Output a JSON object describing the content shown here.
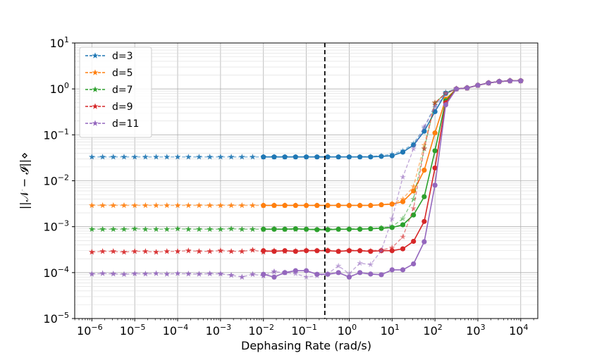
{
  "chart_data": {
    "type": "line",
    "xlabel": "Dephasing Rate (rad/s)",
    "ylabel": "||𝒩 − 𝓘||⋄",
    "x_scale": "log",
    "y_scale": "log",
    "xlim": [
      3.98e-07,
      25000
    ],
    "ylim": [
      1e-05,
      10
    ],
    "x_ticks": [
      {
        "base": "10",
        "exp": "−6"
      },
      {
        "base": "10",
        "exp": "−5"
      },
      {
        "base": "10",
        "exp": "−4"
      },
      {
        "base": "10",
        "exp": "−3"
      },
      {
        "base": "10",
        "exp": "−2"
      },
      {
        "base": "10",
        "exp": "−1"
      },
      {
        "base": "10",
        "exp": "0"
      },
      {
        "base": "10",
        "exp": "1"
      },
      {
        "base": "10",
        "exp": "2"
      },
      {
        "base": "10",
        "exp": "3"
      },
      {
        "base": "10",
        "exp": "4"
      }
    ],
    "y_ticks": [
      {
        "base": "10",
        "exp": "−5"
      },
      {
        "base": "10",
        "exp": "−4"
      },
      {
        "base": "10",
        "exp": "−3"
      },
      {
        "base": "10",
        "exp": "−2"
      },
      {
        "base": "10",
        "exp": "−1"
      },
      {
        "base": "10",
        "exp": "0"
      },
      {
        "base": "10",
        "exp": "1"
      }
    ],
    "grid": true,
    "legend_position": "top-left",
    "vline_x": 0.27,
    "series": [
      {
        "name": "d=3",
        "color": "#1f77b4",
        "star_x": [
          1e-06,
          1.78e-06,
          3.16e-06,
          5.62e-06,
          1e-05,
          1.78e-05,
          3.16e-05,
          5.62e-05,
          0.0001,
          0.000178,
          0.000316,
          0.000562,
          0.001,
          0.00178,
          0.00316,
          0.00562,
          0.01,
          0.0178,
          0.0316,
          0.0562,
          0.1,
          0.178,
          0.316,
          0.562,
          1,
          1.78,
          3.16,
          5.62,
          10,
          17.8,
          31.6,
          56.2,
          100,
          178,
          316,
          562,
          1000,
          1780,
          3160,
          5620,
          10000
        ],
        "star_y": [
          0.033,
          0.033,
          0.033,
          0.033,
          0.033,
          0.033,
          0.033,
          0.033,
          0.033,
          0.033,
          0.033,
          0.033,
          0.033,
          0.033,
          0.033,
          0.033,
          0.033,
          0.033,
          0.033,
          0.033,
          0.033,
          0.033,
          0.033,
          0.033,
          0.033,
          0.033,
          0.034,
          0.035,
          0.038,
          0.045,
          0.065,
          0.14,
          0.45,
          0.85,
          1.0,
          1.05,
          1.2,
          1.35,
          1.45,
          1.5,
          1.5
        ],
        "circle_x": [
          0.01,
          0.0178,
          0.0316,
          0.0562,
          0.1,
          0.178,
          0.316,
          0.562,
          1,
          1.78,
          3.16,
          5.62,
          10,
          17.8,
          31.6,
          56.2,
          100,
          178,
          316,
          562,
          1000,
          1780,
          3160,
          5620,
          10000
        ],
        "circle_y": [
          0.033,
          0.033,
          0.033,
          0.033,
          0.033,
          0.033,
          0.033,
          0.033,
          0.033,
          0.033,
          0.033,
          0.034,
          0.035,
          0.042,
          0.06,
          0.12,
          0.32,
          0.8,
          1.0,
          1.05,
          1.2,
          1.35,
          1.45,
          1.5,
          1.5
        ]
      },
      {
        "name": "d=5",
        "color": "#ff7f0e",
        "star_x": [
          1e-06,
          1.78e-06,
          3.16e-06,
          5.62e-06,
          1e-05,
          1.78e-05,
          3.16e-05,
          5.62e-05,
          0.0001,
          0.000178,
          0.000316,
          0.000562,
          0.001,
          0.00178,
          0.00316,
          0.00562,
          0.01,
          0.0178,
          0.0316,
          0.0562,
          0.1,
          0.178,
          0.316,
          0.562,
          1,
          1.78,
          3.16,
          5.62,
          10,
          17.8,
          31.6,
          56.2,
          100,
          178,
          316,
          562,
          1000,
          1780,
          3160,
          5620,
          10000
        ],
        "star_y": [
          0.0029,
          0.0029,
          0.0029,
          0.0029,
          0.0029,
          0.0029,
          0.0029,
          0.0029,
          0.0029,
          0.0029,
          0.0029,
          0.0029,
          0.0029,
          0.0029,
          0.0029,
          0.0029,
          0.0029,
          0.0029,
          0.0029,
          0.0029,
          0.0029,
          0.0029,
          0.0029,
          0.0029,
          0.0029,
          0.0029,
          0.0029,
          0.003,
          0.0032,
          0.004,
          0.0075,
          0.06,
          0.5,
          0.8,
          1.0,
          1.05,
          1.2,
          1.35,
          1.45,
          1.5,
          1.5
        ],
        "circle_x": [
          0.01,
          0.0178,
          0.0316,
          0.0562,
          0.1,
          0.178,
          0.316,
          0.562,
          1,
          1.78,
          3.16,
          5.62,
          10,
          17.8,
          31.6,
          56.2,
          100,
          178,
          316,
          562,
          1000,
          1780,
          3160,
          5620,
          10000
        ],
        "circle_y": [
          0.0029,
          0.0029,
          0.0029,
          0.0029,
          0.0029,
          0.0029,
          0.0029,
          0.0029,
          0.0029,
          0.0029,
          0.0029,
          0.003,
          0.0031,
          0.0035,
          0.006,
          0.017,
          0.11,
          0.6,
          1.0,
          1.05,
          1.2,
          1.35,
          1.45,
          1.5,
          1.5
        ]
      },
      {
        "name": "d=7",
        "color": "#2ca02c",
        "star_x": [
          1e-06,
          1.78e-06,
          3.16e-06,
          5.62e-06,
          1e-05,
          1.78e-05,
          3.16e-05,
          5.62e-05,
          0.0001,
          0.000178,
          0.000316,
          0.000562,
          0.001,
          0.00178,
          0.00316,
          0.00562,
          0.01,
          0.0178,
          0.0316,
          0.0562,
          0.1,
          0.178,
          0.316,
          0.562,
          1,
          1.78,
          3.16,
          5.62,
          10,
          17.8,
          31.6,
          56.2,
          100,
          178,
          316,
          562,
          1000,
          1780,
          3160,
          5620,
          10000
        ],
        "star_y": [
          0.00088,
          0.00088,
          0.00088,
          0.00088,
          0.0009,
          0.00088,
          0.00088,
          0.00088,
          0.0009,
          0.00088,
          0.00088,
          0.00088,
          0.00088,
          0.0009,
          0.00088,
          0.00088,
          0.00088,
          0.0009,
          0.00088,
          0.00086,
          0.00088,
          0.00088,
          0.0009,
          0.00088,
          0.0009,
          0.0009,
          0.0009,
          0.00095,
          0.001,
          0.0015,
          0.004,
          0.05,
          0.5,
          0.8,
          1.0,
          1.05,
          1.2,
          1.35,
          1.45,
          1.5,
          1.5
        ],
        "circle_x": [
          0.01,
          0.0178,
          0.0316,
          0.0562,
          0.1,
          0.178,
          0.316,
          0.562,
          1,
          1.78,
          3.16,
          5.62,
          10,
          17.8,
          31.6,
          56.2,
          100,
          178,
          316,
          562,
          1000,
          1780,
          3160,
          5620,
          10000
        ],
        "circle_y": [
          0.00088,
          0.00088,
          0.00088,
          0.0009,
          0.00088,
          0.00086,
          0.00086,
          0.00088,
          0.00088,
          0.00088,
          0.0009,
          0.00092,
          0.00096,
          0.0011,
          0.0018,
          0.0045,
          0.045,
          0.55,
          1.0,
          1.05,
          1.2,
          1.35,
          1.45,
          1.5,
          1.5
        ]
      },
      {
        "name": "d=9",
        "color": "#d62728",
        "star_x": [
          1e-06,
          1.78e-06,
          3.16e-06,
          5.62e-06,
          1e-05,
          1.78e-05,
          3.16e-05,
          5.62e-05,
          0.0001,
          0.000178,
          0.000316,
          0.000562,
          0.001,
          0.00178,
          0.00316,
          0.00562,
          0.01,
          0.0178,
          0.0316,
          0.0562,
          0.1,
          0.178,
          0.316,
          0.562,
          1,
          1.78,
          3.16,
          5.62,
          10,
          17.8,
          31.6,
          56.2,
          100,
          178,
          316,
          562,
          1000,
          1780,
          3160,
          5620,
          10000
        ],
        "star_y": [
          0.00028,
          0.00029,
          0.00029,
          0.00028,
          0.00029,
          0.00029,
          0.00028,
          0.00029,
          0.00029,
          0.0003,
          0.00029,
          0.00029,
          0.0003,
          0.00029,
          0.00029,
          0.00031,
          0.00028,
          0.0003,
          0.00029,
          0.0003,
          0.00031,
          0.0003,
          0.00031,
          0.00029,
          0.00031,
          0.0003,
          0.0003,
          0.00031,
          0.00035,
          0.0006,
          0.0025,
          0.05,
          0.5,
          0.8,
          1.0,
          1.05,
          1.2,
          1.35,
          1.45,
          1.5,
          1.5
        ],
        "circle_x": [
          0.01,
          0.0178,
          0.0316,
          0.0562,
          0.1,
          0.178,
          0.316,
          0.562,
          1,
          1.78,
          3.16,
          5.62,
          10,
          17.8,
          31.6,
          56.2,
          100,
          178,
          316,
          562,
          1000,
          1780,
          3160,
          5620,
          10000
        ],
        "circle_y": [
          0.0003,
          0.00029,
          0.0003,
          0.00029,
          0.0003,
          0.0003,
          0.0003,
          0.00029,
          0.0003,
          0.0003,
          0.00029,
          0.0003,
          0.0003,
          0.00033,
          0.00048,
          0.0013,
          0.019,
          0.5,
          1.0,
          1.05,
          1.2,
          1.35,
          1.45,
          1.5,
          1.5
        ]
      },
      {
        "name": "d=11",
        "color": "#9467bd",
        "star_x": [
          1e-06,
          1.78e-06,
          3.16e-06,
          5.62e-06,
          1e-05,
          1.78e-05,
          3.16e-05,
          5.62e-05,
          0.0001,
          0.000178,
          0.000316,
          0.000562,
          0.001,
          0.00178,
          0.00316,
          0.00562,
          0.01,
          0.0178,
          0.0316,
          0.0562,
          0.1,
          0.178,
          0.316,
          0.562,
          1,
          1.78,
          3.16,
          5.62,
          10,
          17.8,
          31.6,
          56.2,
          100,
          178,
          316,
          562,
          1000,
          1780,
          3160,
          5620,
          10000
        ],
        "star_y": [
          9.3e-05,
          9.6e-05,
          9.4e-05,
          9.2e-05,
          9.5e-05,
          9.4e-05,
          9.6e-05,
          9.3e-05,
          9.6e-05,
          9.4e-05,
          9.3e-05,
          9.5e-05,
          9.4e-05,
          8.8e-05,
          8e-05,
          9.2e-05,
          8.5e-05,
          0.000105,
          0.0001,
          9.5e-05,
          8e-05,
          8.5e-05,
          9.5e-05,
          0.00014,
          9.5e-05,
          0.00016,
          0.00015,
          0.0003,
          0.0015,
          0.012,
          0.05,
          0.15,
          0.4,
          0.8,
          1.0,
          1.05,
          1.2,
          1.35,
          1.45,
          1.5,
          1.5
        ],
        "circle_x": [
          0.01,
          0.0178,
          0.0316,
          0.0562,
          0.1,
          0.178,
          0.316,
          0.562,
          1,
          1.78,
          3.16,
          5.62,
          10,
          17.8,
          31.6,
          56.2,
          100,
          178,
          316,
          562,
          1000,
          1780,
          3160,
          5620,
          10000
        ],
        "circle_y": [
          9.2e-05,
          8e-05,
          0.0001,
          0.00011,
          0.00011,
          9.2e-05,
          9.2e-05,
          0.0001,
          8e-05,
          0.0001,
          9.3e-05,
          9e-05,
          0.000115,
          0.000115,
          0.000155,
          0.00047,
          0.008,
          0.45,
          1.0,
          1.05,
          1.2,
          1.35,
          1.45,
          1.5,
          1.5
        ]
      }
    ]
  }
}
